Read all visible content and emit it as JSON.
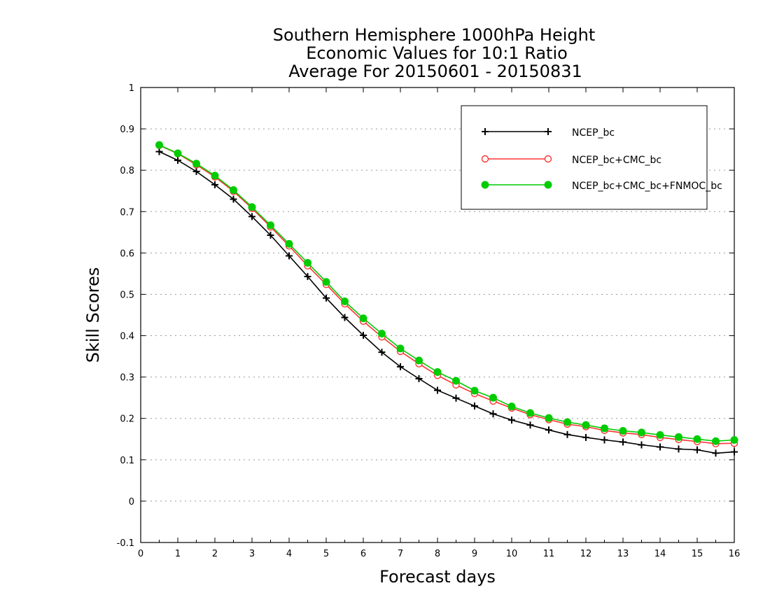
{
  "chart_data": {
    "type": "line",
    "title": "Southern Hemisphere 1000hPa Height",
    "subtitle": "Economic Values for 10:1 Ratio",
    "subtitle2": "Average For 20150601 - 20150831",
    "xlabel": "Forecast days",
    "ylabel": "Skill Scores",
    "xlim": [
      0,
      16
    ],
    "ylim": [
      -0.1,
      1
    ],
    "xticks": [
      "0",
      "1",
      "2",
      "3",
      "4",
      "5",
      "6",
      "7",
      "8",
      "9",
      "10",
      "11",
      "12",
      "13",
      "14",
      "15",
      "16"
    ],
    "yticks": [
      "-0.1",
      "0",
      "0.1",
      "0.2",
      "0.3",
      "0.4",
      "0.5",
      "0.6",
      "0.7",
      "0.8",
      "0.9",
      "1"
    ],
    "grid": "horizontal dotted",
    "legend_position": "top-right",
    "x": [
      0.5,
      1,
      1.5,
      2,
      2.5,
      3,
      3.5,
      4,
      4.5,
      5,
      5.5,
      6,
      6.5,
      7,
      7.5,
      8,
      8.5,
      9,
      9.5,
      10,
      10.5,
      11,
      11.5,
      12,
      12.5,
      13,
      13.5,
      14,
      14.5,
      15,
      15.5,
      16
    ],
    "series": [
      {
        "name": "NCEP_bc",
        "color": "#000000",
        "marker": "plus",
        "values": [
          0.845,
          0.824,
          0.797,
          0.765,
          0.73,
          0.688,
          0.643,
          0.593,
          0.543,
          0.491,
          0.444,
          0.401,
          0.36,
          0.325,
          0.296,
          0.268,
          0.249,
          0.23,
          0.211,
          0.196,
          0.184,
          0.172,
          0.161,
          0.154,
          0.148,
          0.143,
          0.136,
          0.131,
          0.126,
          0.124,
          0.116,
          0.119
        ]
      },
      {
        "name": "NCEP_bc+CMC_bc",
        "color": "#ff3333",
        "marker": "open-circle",
        "values": [
          0.86,
          0.84,
          0.813,
          0.784,
          0.749,
          0.708,
          0.663,
          0.617,
          0.569,
          0.524,
          0.477,
          0.435,
          0.397,
          0.362,
          0.332,
          0.304,
          0.281,
          0.26,
          0.242,
          0.225,
          0.209,
          0.197,
          0.186,
          0.18,
          0.171,
          0.165,
          0.161,
          0.154,
          0.149,
          0.144,
          0.139,
          0.14
        ]
      },
      {
        "name": "NCEP_bc+CMC_bc+FNMOC_bc",
        "color": "#00cc00",
        "marker": "filled-circle",
        "values": [
          0.861,
          0.841,
          0.816,
          0.787,
          0.752,
          0.711,
          0.667,
          0.622,
          0.576,
          0.53,
          0.483,
          0.442,
          0.405,
          0.369,
          0.34,
          0.312,
          0.291,
          0.267,
          0.25,
          0.229,
          0.213,
          0.201,
          0.191,
          0.184,
          0.176,
          0.17,
          0.166,
          0.16,
          0.155,
          0.15,
          0.145,
          0.148
        ]
      }
    ]
  }
}
